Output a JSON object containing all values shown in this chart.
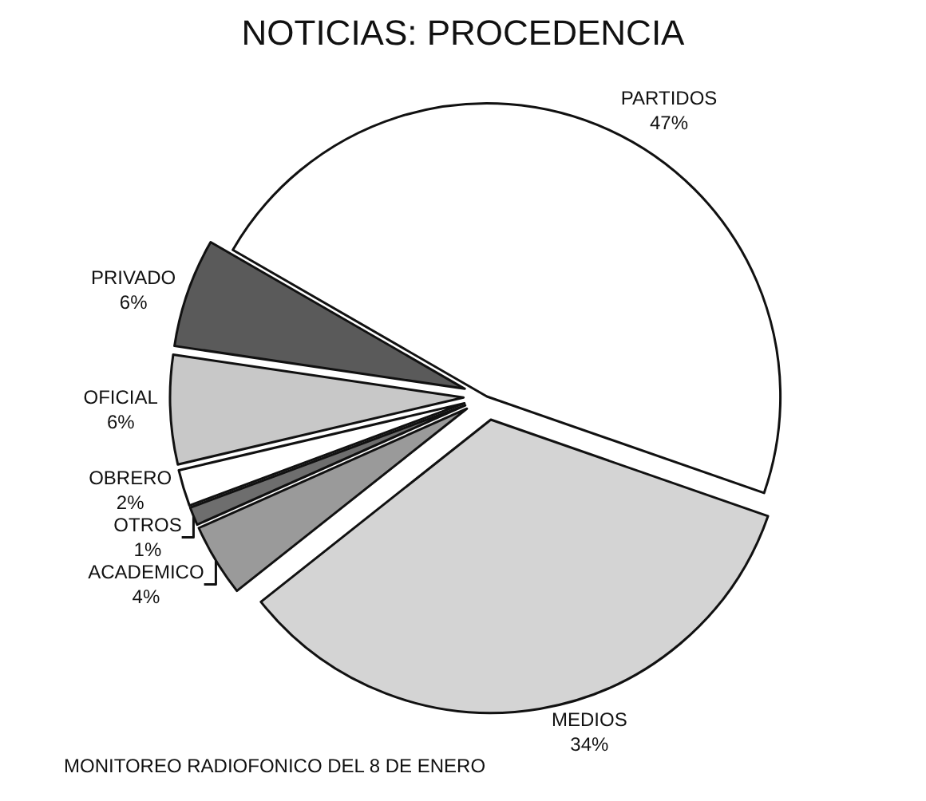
{
  "chart_data": {
    "type": "pie",
    "title": "NOTICIAS: PROCEDENCIA",
    "categories": [
      "PARTIDOS",
      "MEDIOS",
      "ACADEMICO",
      "OTROS",
      "OBRERO",
      "OFICIAL",
      "PRIVADO"
    ],
    "values": [
      47,
      34,
      4,
      1,
      2,
      6,
      6
    ],
    "value_labels": [
      "47%",
      "34%",
      "4%",
      "1%",
      "2%",
      "6%",
      "6%"
    ],
    "colors": [
      "#ffffff",
      "#d4d4d4",
      "#9a9a9a",
      "#6e6e6e",
      "#ffffff",
      "#c8c8c8",
      "#5a5a5a"
    ],
    "annotations": [
      "MONITOREO RADIOFONICO DEL 8 DE ENERO"
    ],
    "legend": false
  }
}
